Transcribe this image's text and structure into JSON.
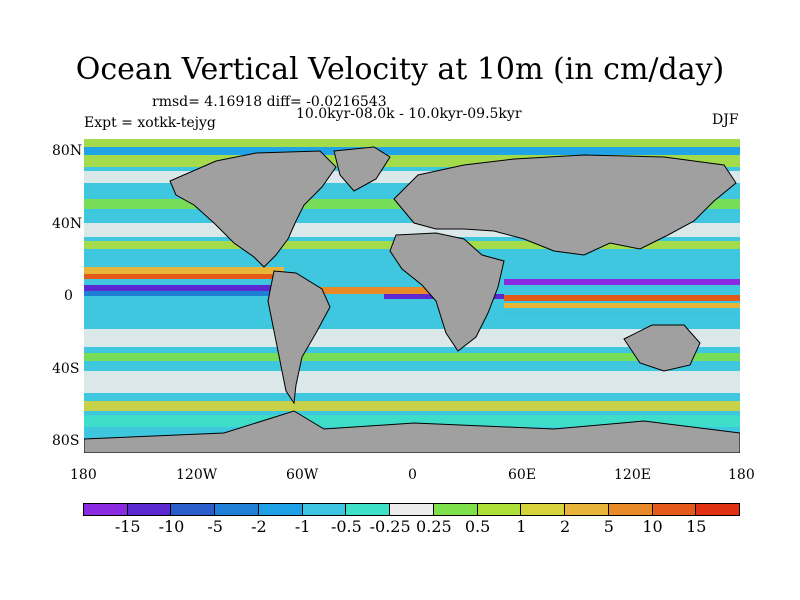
{
  "title": "Ocean Vertical Velocity at 10m (in cm/day)",
  "stats": "rmsd= 4.16918 diff= -0.0216543",
  "period": "10.0kyr-08.0k - 10.0kyr-09.5kyr",
  "experiment": "Expt = xotkk-tejyg",
  "season": "DJF",
  "lat_labels": [
    "80N",
    "40N",
    "0",
    "40S",
    "80S"
  ],
  "lon_labels": [
    "180",
    "120W",
    "60W",
    "0",
    "60E",
    "120E",
    "180"
  ],
  "colorbar": {
    "labels": [
      "-15",
      "-10",
      "-5",
      "-2",
      "-1",
      "-0.5",
      "-0.25",
      "0.25",
      "0.5",
      "1",
      "2",
      "5",
      "10",
      "15"
    ],
    "colors": [
      "#8a2be2",
      "#5a2ad0",
      "#2a5ccc",
      "#1e7fd6",
      "#1ea0e6",
      "#3cc4e0",
      "#3ee0c8",
      "#ececec",
      "#7ee04a",
      "#aede3a",
      "#d6d43a",
      "#e8b43a",
      "#e88a28",
      "#e45a18",
      "#e03210"
    ]
  },
  "land_color": "#a0a0a0"
}
